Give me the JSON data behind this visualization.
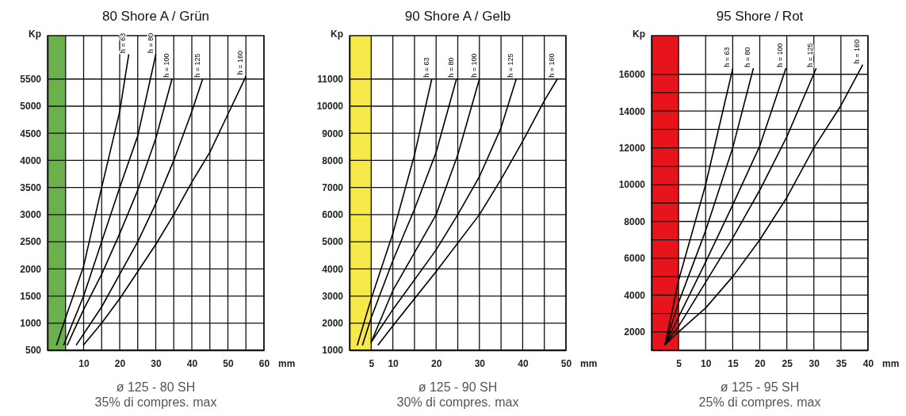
{
  "chart_data": [
    {
      "type": "line",
      "title": "80 Shore A / Grün",
      "xlabel": "mm",
      "ylabel": "Kp",
      "annotations": [
        "ø 125 - 80 SH",
        "35% di compres. max"
      ],
      "xlim": [
        0,
        60
      ],
      "xticks": [
        {
          "value": 5,
          "label": null
        },
        10,
        {
          "value": 15,
          "label": null
        },
        20,
        {
          "value": 25,
          "label": null
        },
        30,
        {
          "value": 35,
          "label": null
        },
        40,
        {
          "value": 45,
          "label": null
        },
        50,
        {
          "value": 55,
          "label": null
        },
        60
      ],
      "ylim": [
        500,
        6300
      ],
      "yticks": [
        500,
        1000,
        1500,
        2000,
        2500,
        3000,
        3500,
        4000,
        4500,
        5000,
        5500
      ],
      "grid": true,
      "bands": [
        {
          "axis": "x",
          "from": 0,
          "to": 5,
          "color": "#6ab04c"
        }
      ],
      "series": [
        {
          "name": "h = 63",
          "color": "#000000",
          "x": [
            2.5,
            5,
            10,
            15,
            20,
            22.5
          ],
          "values": [
            600,
            1100,
            2050,
            3500,
            4900,
            5950
          ]
        },
        {
          "name": "h = 80",
          "color": "#000000",
          "x": [
            4.5,
            10,
            15,
            20,
            25,
            30
          ],
          "values": [
            600,
            1500,
            2500,
            3500,
            4450,
            5950
          ]
        },
        {
          "name": "h = 100",
          "color": "#000000",
          "x": [
            5.5,
            10,
            15,
            20,
            25,
            30,
            34.5
          ],
          "values": [
            600,
            1250,
            1900,
            2650,
            3450,
            4400,
            5500
          ]
        },
        {
          "name": "h = 125",
          "color": "#000000",
          "x": [
            8,
            10,
            15,
            20,
            25,
            30,
            35,
            40,
            43
          ],
          "values": [
            600,
            800,
            1300,
            1900,
            2500,
            3200,
            4000,
            4900,
            5500
          ]
        },
        {
          "name": "h = 160",
          "color": "#000000",
          "x": [
            10,
            15,
            20,
            25,
            30,
            35,
            40,
            45,
            50,
            55
          ],
          "values": [
            600,
            1000,
            1450,
            1950,
            2450,
            3000,
            3600,
            4150,
            4850,
            5550
          ]
        }
      ]
    },
    {
      "type": "line",
      "title": "90 Shore A / Gelb",
      "xlabel": "mm",
      "ylabel": "Kp",
      "annotations": [
        "ø 125 - 90 SH",
        "30% di compres. max"
      ],
      "xlim": [
        0,
        50
      ],
      "xticks": [
        5,
        10,
        {
          "value": 15,
          "label": null
        },
        20,
        {
          "value": 25,
          "label": null
        },
        30,
        {
          "value": 35,
          "label": null
        },
        40,
        {
          "value": 45,
          "label": null
        },
        50
      ],
      "ylim": [
        1000,
        12600
      ],
      "yticks": [
        1000,
        2000,
        3000,
        4000,
        5000,
        6000,
        7000,
        8000,
        9000,
        10000,
        11000
      ],
      "grid": true,
      "bands": [
        {
          "axis": "x",
          "from": 0,
          "to": 5,
          "color": "#f7e94a"
        }
      ],
      "series": [
        {
          "name": "h = 63",
          "color": "#000000",
          "x": [
            1.8,
            5,
            10,
            15,
            19
          ],
          "values": [
            1200,
            2900,
            5300,
            8200,
            11000
          ]
        },
        {
          "name": "h = 80",
          "color": "#000000",
          "x": [
            3,
            5,
            10,
            15,
            20,
            24.7
          ],
          "values": [
            1200,
            2200,
            4300,
            6200,
            8300,
            11000
          ]
        },
        {
          "name": "h = 100",
          "color": "#000000",
          "x": [
            5,
            10,
            15,
            20,
            25,
            30
          ],
          "values": [
            1300,
            3200,
            4600,
            6000,
            8200,
            11000
          ]
        },
        {
          "name": "h = 125",
          "color": "#000000",
          "x": [
            5,
            10,
            20,
            25,
            30,
            35,
            38.5
          ],
          "values": [
            1300,
            2500,
            4700,
            6000,
            7400,
            9200,
            11000
          ]
        },
        {
          "name": "h = 160",
          "color": "#000000",
          "x": [
            6.6,
            10,
            20,
            30,
            35,
            40,
            45,
            48
          ],
          "values": [
            1200,
            1900,
            3900,
            6000,
            7300,
            8700,
            10200,
            11000
          ]
        }
      ]
    },
    {
      "type": "line",
      "title": "95 Shore / Rot",
      "xlabel": "mm",
      "ylabel": "Kp",
      "annotations": [
        "ø 125 - 95 SH",
        "25% di compres. max"
      ],
      "xlim": [
        0,
        40
      ],
      "xticks": [
        5,
        10,
        15,
        20,
        25,
        30,
        35,
        40
      ],
      "ylim": [
        1000,
        18100
      ],
      "yticks": [
        2000,
        {
          "value": 3000,
          "label": null
        },
        4000,
        {
          "value": 5000,
          "label": null
        },
        6000,
        {
          "value": 7000,
          "label": null
        },
        8000,
        {
          "value": 9000,
          "label": null
        },
        10000,
        {
          "value": 11000,
          "label": null
        },
        12000,
        {
          "value": 13000,
          "label": null
        },
        14000,
        {
          "value": 15000,
          "label": null
        },
        16000
      ],
      "grid": true,
      "bands": [
        {
          "axis": "x",
          "from": 0,
          "to": 5,
          "color": "#e8141b"
        }
      ],
      "series": [
        {
          "name": "h = 63",
          "color": "#000000",
          "x": [
            2.5,
            5,
            10,
            15
          ],
          "values": [
            1300,
            4800,
            10000,
            16300
          ]
        },
        {
          "name": "h = 80",
          "color": "#000000",
          "x": [
            2.5,
            5,
            10,
            15,
            18.8
          ],
          "values": [
            1300,
            3600,
            7500,
            12000,
            16300
          ]
        },
        {
          "name": "h = 100",
          "color": "#000000",
          "x": [
            2.5,
            5,
            10,
            15,
            20,
            24.8
          ],
          "values": [
            1300,
            2800,
            5800,
            8900,
            12100,
            16300
          ]
        },
        {
          "name": "h = 125",
          "color": "#000000",
          "x": [
            2.5,
            5,
            10,
            15,
            20,
            25,
            30.4
          ],
          "values": [
            1300,
            2300,
            4700,
            7100,
            9700,
            12600,
            16300
          ]
        },
        {
          "name": "h = 160",
          "color": "#000000",
          "x": [
            2.5,
            5,
            10,
            15,
            20,
            25,
            30,
            35,
            39
          ],
          "values": [
            1300,
            2000,
            3300,
            5000,
            7000,
            9300,
            12000,
            14300,
            16500
          ]
        }
      ]
    }
  ]
}
